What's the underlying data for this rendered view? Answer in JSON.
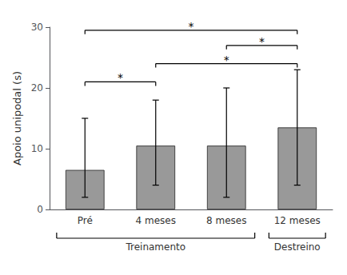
{
  "chart_data": {
    "type": "bar",
    "categories": [
      "Pré",
      "4 meses",
      "8 meses",
      "12 meses"
    ],
    "values": [
      6.5,
      10.5,
      10.5,
      13.5
    ],
    "errors_upper": [
      8.5,
      7.5,
      9.5,
      9.5
    ],
    "errors_lower": [
      4.5,
      6.5,
      8.5,
      9.5
    ],
    "color": "#999999",
    "ylabel": "Apoio unipodal (s)",
    "ylim": [
      0,
      30
    ],
    "yticks": [
      0,
      10,
      20,
      30
    ],
    "grid": false,
    "brackets": [
      {
        "from": "Pré",
        "to": "4 meses",
        "y": 21.0,
        "label": "*"
      },
      {
        "from": "4 meses",
        "to": "12 meses",
        "y": 24.0,
        "label": "*"
      },
      {
        "from": "8 meses",
        "to": "12 meses",
        "y": 27.0,
        "label": "*"
      },
      {
        "from": "Pré",
        "to": "12 meses",
        "y": 29.5,
        "label": "*"
      }
    ],
    "groups": [
      {
        "label": "Treinamento",
        "categories": [
          "Pré",
          "4 meses",
          "8 meses"
        ]
      },
      {
        "label": "Destreino",
        "categories": [
          "12 meses"
        ]
      }
    ]
  }
}
